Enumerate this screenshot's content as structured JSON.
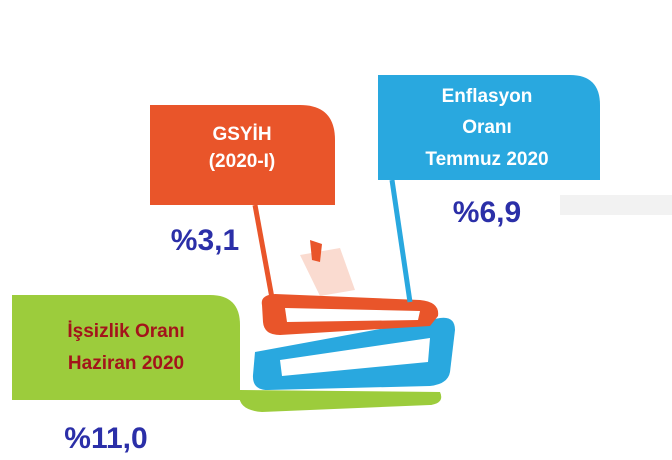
{
  "cards": [
    {
      "lines": [
        "GSYİH",
        "(2020-I)"
      ],
      "value": "%3,1"
    },
    {
      "lines": [
        "Enflasyon",
        "Oranı",
        "Temmuz 2020"
      ],
      "value": "%6,9"
    },
    {
      "lines": [
        "İşsizlik Oranı",
        "Haziran 2020"
      ],
      "value": "%11,0"
    }
  ]
}
